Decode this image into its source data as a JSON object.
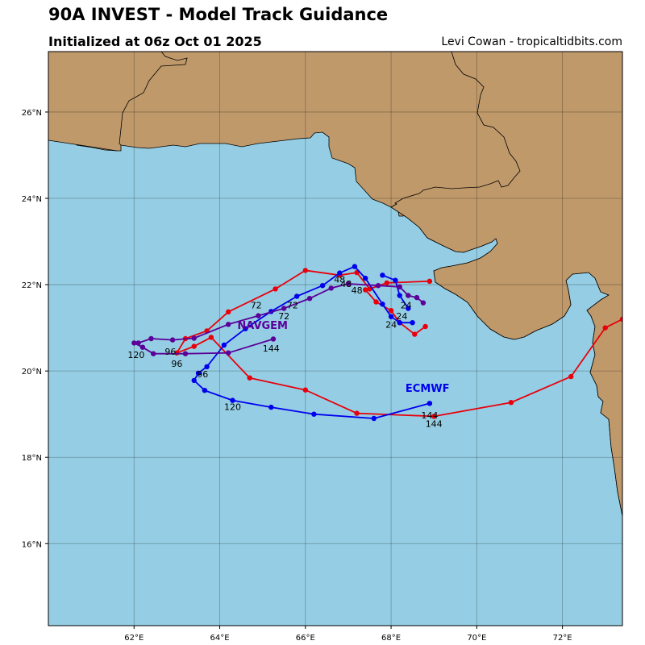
{
  "header": {
    "title": "90A INVEST - Model Track Guidance",
    "subtitle": "Initialized at 06z Oct 01 2025",
    "credit": "Levi Cowan - tropicaltidbits.com"
  },
  "map": {
    "lon_range": [
      60,
      73.4
    ],
    "lat_range": [
      14.1,
      27.4
    ],
    "ocean_color": "#95cee4",
    "land_color": "#c0996b",
    "grid": true,
    "lon_ticks": [
      {
        "value": 62,
        "label": "62°E"
      },
      {
        "value": 64,
        "label": "64°E"
      },
      {
        "value": 66,
        "label": "66°E"
      },
      {
        "value": 68,
        "label": "68°E"
      },
      {
        "value": 70,
        "label": "70°E"
      },
      {
        "value": 72,
        "label": "72°E"
      }
    ],
    "lat_ticks": [
      {
        "value": 16,
        "label": "16°N"
      },
      {
        "value": 18,
        "label": "18°N"
      },
      {
        "value": 20,
        "label": "20°N"
      },
      {
        "value": 22,
        "label": "22°N"
      },
      {
        "value": 24,
        "label": "24°N"
      },
      {
        "value": 26,
        "label": "26°N"
      }
    ]
  },
  "chart_data": {
    "type": "line",
    "series": [
      {
        "name": "",
        "color": "#e8000b",
        "points": [
          [
            68.9,
            22.08
          ],
          [
            67.9,
            22.04
          ],
          [
            67.5,
            21.9
          ],
          [
            67.2,
            22.28
          ],
          [
            66.8,
            22.22
          ],
          [
            66.0,
            22.33
          ],
          [
            65.3,
            21.9
          ],
          [
            64.2,
            21.37
          ],
          [
            63.7,
            20.93
          ],
          [
            63.2,
            20.75
          ],
          [
            63.0,
            20.42
          ],
          [
            63.4,
            20.57
          ],
          [
            63.8,
            20.78
          ],
          [
            64.7,
            19.84
          ],
          [
            66.0,
            19.56
          ],
          [
            67.2,
            19.02
          ],
          [
            69.0,
            18.95
          ],
          [
            70.8,
            19.27
          ],
          [
            72.2,
            19.87
          ],
          [
            73.0,
            21.0
          ],
          [
            73.4,
            21.2
          ]
        ],
        "labels": []
      },
      {
        "name": "",
        "color": "#e8000b",
        "points": [
          [
            68.8,
            21.03
          ],
          [
            68.55,
            20.85
          ],
          [
            68.2,
            21.12
          ],
          [
            68.0,
            21.4
          ],
          [
            67.65,
            21.6
          ],
          [
            67.4,
            21.88
          ]
        ],
        "labels": []
      },
      {
        "name": "ECMWF",
        "color": "#0000ee",
        "points": [
          [
            68.5,
            21.12
          ],
          [
            68.2,
            21.12
          ],
          [
            68.0,
            21.26
          ],
          [
            67.8,
            21.55
          ],
          [
            67.4,
            22.15
          ],
          [
            67.15,
            22.42
          ],
          [
            66.8,
            22.27
          ],
          [
            66.4,
            21.98
          ],
          [
            65.8,
            21.73
          ],
          [
            65.2,
            21.38
          ],
          [
            64.6,
            20.98
          ],
          [
            64.1,
            20.6
          ],
          [
            63.7,
            20.1
          ],
          [
            63.5,
            19.95
          ],
          [
            63.4,
            19.78
          ],
          [
            63.65,
            19.55
          ],
          [
            64.3,
            19.32
          ],
          [
            65.2,
            19.16
          ],
          [
            66.2,
            19.0
          ],
          [
            67.6,
            18.9
          ],
          [
            68.9,
            19.25
          ]
        ],
        "labels": [
          {
            "text": "24",
            "x": 68.0,
            "y": 21.0
          },
          {
            "text": "48",
            "x": 67.2,
            "y": 21.8
          },
          {
            "text": "72",
            "x": 65.5,
            "y": 21.2
          },
          {
            "text": "96",
            "x": 63.6,
            "y": 19.85
          },
          {
            "text": "120",
            "x": 64.3,
            "y": 19.1
          },
          {
            "text": "144",
            "x": 68.9,
            "y": 18.9
          }
        ]
      },
      {
        "name": "",
        "color": "#0000ee",
        "points": [
          [
            68.4,
            21.45
          ],
          [
            68.2,
            21.75
          ],
          [
            68.1,
            22.1
          ],
          [
            67.8,
            22.22
          ]
        ],
        "labels": []
      },
      {
        "name": "NAVGEM",
        "color": "#5b0099",
        "points": [
          [
            68.75,
            21.58
          ],
          [
            68.6,
            21.7
          ],
          [
            68.4,
            21.75
          ],
          [
            68.2,
            21.95
          ],
          [
            67.7,
            21.98
          ],
          [
            67.0,
            22.02
          ],
          [
            66.6,
            21.92
          ],
          [
            66.1,
            21.68
          ],
          [
            65.5,
            21.45
          ],
          [
            64.9,
            21.28
          ],
          [
            64.2,
            21.08
          ],
          [
            63.4,
            20.76
          ],
          [
            62.9,
            20.72
          ],
          [
            62.4,
            20.75
          ],
          [
            62.1,
            20.65
          ],
          [
            62.0,
            20.65
          ],
          [
            62.2,
            20.55
          ],
          [
            62.45,
            20.4
          ],
          [
            63.2,
            20.4
          ],
          [
            64.2,
            20.42
          ],
          [
            65.25,
            20.74
          ]
        ],
        "labels": [
          {
            "text": "24",
            "x": 68.35,
            "y": 21.45
          },
          {
            "text": "48",
            "x": 66.8,
            "y": 22.05
          },
          {
            "text": "72",
            "x": 64.85,
            "y": 21.45
          },
          {
            "text": "96",
            "x": 63.0,
            "y": 20.1
          },
          {
            "text": "120",
            "x": 62.05,
            "y": 20.3
          },
          {
            "text": "144",
            "x": 65.2,
            "y": 20.45
          }
        ]
      }
    ],
    "extra_labels": [
      {
        "text": "72",
        "x": 65.7,
        "y": 21.45,
        "color": "#000000"
      },
      {
        "text": "96",
        "x": 62.85,
        "y": 20.38,
        "color": "#000000"
      },
      {
        "text": "144",
        "x": 69.0,
        "y": 18.7,
        "color": "#000000"
      },
      {
        "text": "24",
        "x": 68.25,
        "y": 21.2,
        "color": "#000000"
      },
      {
        "text": "48",
        "x": 66.95,
        "y": 21.95,
        "color": "#000000"
      }
    ],
    "model_labels": [
      {
        "text": "ECMWF",
        "x": 68.85,
        "y": 19.52,
        "color": "#0000ee"
      },
      {
        "text": "NAVGEM",
        "x": 65.0,
        "y": 20.97,
        "color": "#5b0099"
      }
    ]
  }
}
